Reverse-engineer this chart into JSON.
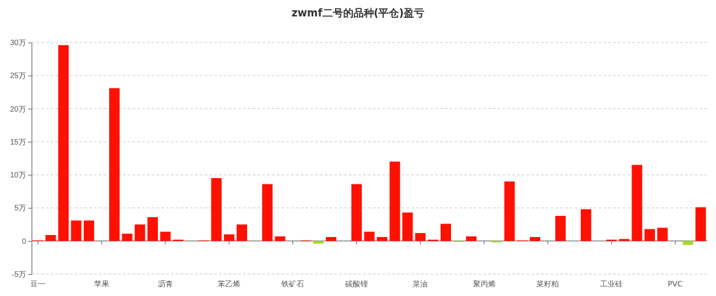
{
  "chart_data": {
    "type": "bar",
    "title": "zwmf二号的品种(平仓)盈亏",
    "categories": [
      "豆一",
      null,
      null,
      null,
      null,
      "苹果",
      null,
      null,
      null,
      null,
      "沥青",
      null,
      null,
      null,
      null,
      "苯乙烯",
      null,
      null,
      null,
      null,
      "铁矿石",
      null,
      null,
      null,
      null,
      "碳酸锂",
      null,
      null,
      null,
      null,
      "菜油",
      null,
      null,
      null,
      null,
      "聚丙烯",
      null,
      null,
      null,
      null,
      "菜籽粕",
      null,
      null,
      null,
      null,
      "工业硅",
      null,
      null,
      null,
      null,
      "PVC",
      null,
      null
    ],
    "values": [
      0.1,
      0.9,
      29.6,
      3.1,
      3.1,
      0,
      23.1,
      1.1,
      2.5,
      3.6,
      1.4,
      0.2,
      0,
      0.1,
      9.5,
      1.0,
      2.5,
      0,
      8.6,
      0.7,
      0,
      0.1,
      -0.4,
      0.6,
      0,
      8.6,
      1.4,
      0.6,
      12.0,
      4.3,
      1.2,
      0.2,
      2.6,
      -0.1,
      0.7,
      0,
      -0.2,
      9.0,
      0.1,
      0.6,
      0,
      3.8,
      0,
      4.8,
      0,
      0.2,
      0.3,
      11.5,
      1.8,
      2.0,
      0,
      -0.6,
      5.1
    ],
    "colors": [
      "#fe1100",
      "#fe1100",
      "#fe1100",
      "#fe1100",
      "#fe1100",
      "#fe1100",
      "#fe1100",
      "#fe1100",
      "#fe1100",
      "#fe1100",
      "#fe1100",
      "#fe1100",
      "#fe1100",
      "#fe1100",
      "#fe1100",
      "#fe1100",
      "#fe1100",
      "#fe1100",
      "#fe1100",
      "#fe1100",
      "#fe1100",
      "#fe1100",
      "#a8d82a",
      "#fe1100",
      "#fe1100",
      "#fe1100",
      "#fe1100",
      "#fe1100",
      "#fe1100",
      "#fe1100",
      "#fe1100",
      "#fe1100",
      "#fe1100",
      "#a8d82a",
      "#fe1100",
      "#fe1100",
      "#a8d82a",
      "#fe1100",
      "#fe1100",
      "#fe1100",
      "#fe1100",
      "#fe1100",
      "#fe1100",
      "#fe1100",
      "#fe1100",
      "#fe1100",
      "#fe1100",
      "#fe1100",
      "#fe1100",
      "#fe1100",
      "#fe1100",
      "#a8d82a",
      "#fe1100"
    ],
    "ylim": [
      -5,
      30
    ],
    "yticks": [
      {
        "value": -5,
        "label": "-5万"
      },
      {
        "value": 0,
        "label": "0"
      },
      {
        "value": 5,
        "label": "5万"
      },
      {
        "value": 10,
        "label": "10万"
      },
      {
        "value": 15,
        "label": "15万"
      },
      {
        "value": 20,
        "label": "20万"
      },
      {
        "value": 25,
        "label": "25万"
      },
      {
        "value": 30,
        "label": "30万"
      }
    ],
    "grid": "y"
  }
}
